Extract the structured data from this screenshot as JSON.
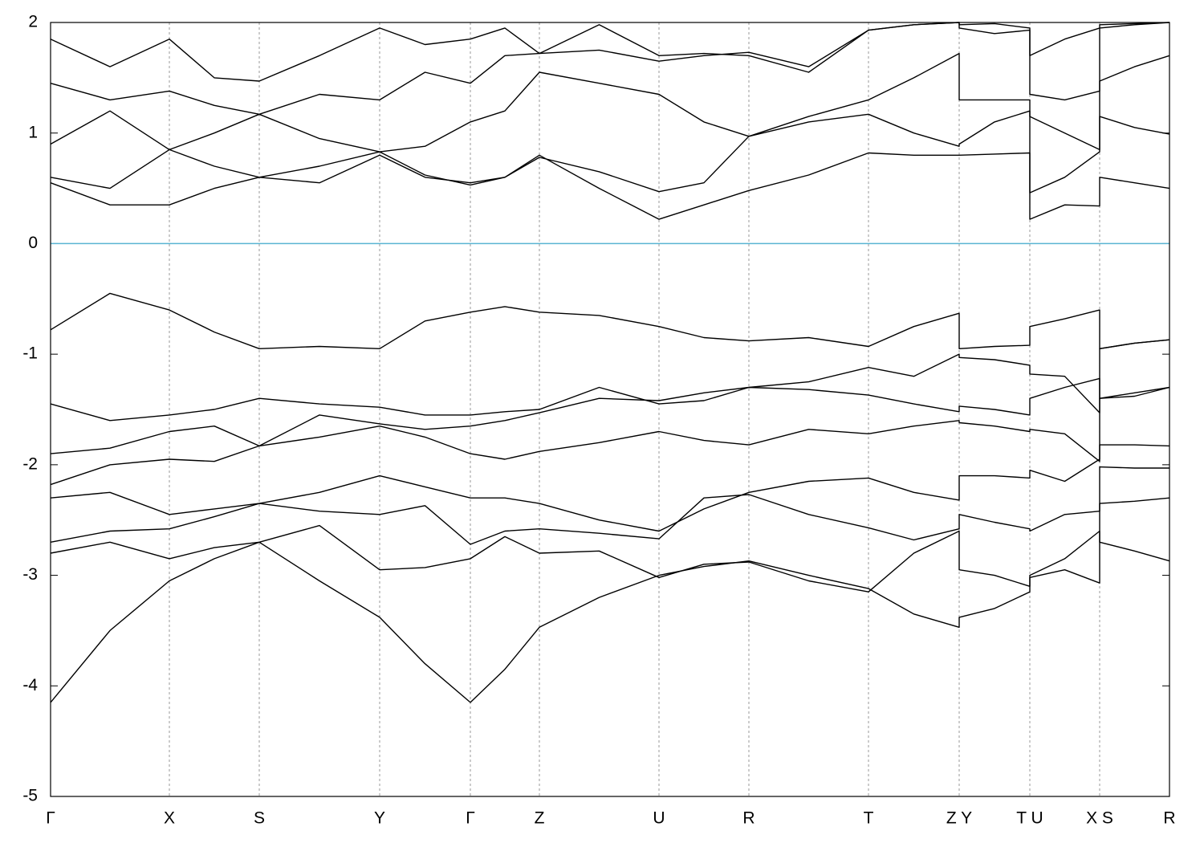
{
  "chart_data": {
    "type": "line",
    "x": [
      0,
      0.148,
      0.296,
      0.408,
      0.52,
      0.67,
      0.82,
      0.933,
      1.046,
      1.132,
      1.218,
      1.367,
      1.516,
      1.628,
      1.74,
      1.889,
      2.038,
      2.151,
      2.264,
      2.264,
      2.352,
      2.44,
      2.44,
      2.527,
      2.614,
      2.614,
      2.701,
      2.788
    ],
    "color": "#000000",
    "series": [
      {
        "values": [
          -4.15,
          -3.5,
          -3.05,
          -2.85,
          -2.7,
          -3.05,
          -3.38,
          -3.8,
          -4.15,
          -3.85,
          -3.47,
          -3.2,
          -3.0,
          -2.92,
          -2.87,
          -3.0,
          -3.12,
          -3.35,
          -3.47,
          -3.38,
          -3.3,
          -3.15,
          -3.0,
          -2.85,
          -2.6,
          -2.7,
          -2.78,
          -2.87
        ]
      },
      {
        "values": [
          -2.8,
          -2.7,
          -2.85,
          -2.75,
          -2.7,
          -2.55,
          -2.95,
          -2.93,
          -2.85,
          -2.65,
          -2.8,
          -2.78,
          -3.02,
          -2.9,
          -2.88,
          -3.05,
          -3.15,
          -2.8,
          -2.6,
          -2.95,
          -3.0,
          -3.1,
          -3.02,
          -2.95,
          -3.07,
          -2.35,
          -2.33,
          -2.3
        ]
      },
      {
        "values": [
          -2.7,
          -2.6,
          -2.58,
          -2.47,
          -2.35,
          -2.42,
          -2.45,
          -2.37,
          -2.72,
          -2.6,
          -2.58,
          -2.62,
          -2.67,
          -2.3,
          -2.27,
          -2.45,
          -2.57,
          -2.68,
          -2.58,
          -2.45,
          -2.52,
          -2.58,
          -2.6,
          -2.45,
          -2.42,
          -2.02,
          -2.03,
          -2.03
        ]
      },
      {
        "values": [
          -2.3,
          -2.25,
          -2.45,
          -2.4,
          -2.35,
          -2.25,
          -2.1,
          -2.2,
          -2.3,
          -2.3,
          -2.35,
          -2.5,
          -2.6,
          -2.4,
          -2.25,
          -2.15,
          -2.12,
          -2.25,
          -2.32,
          -2.1,
          -2.1,
          -2.12,
          -2.05,
          -2.15,
          -1.95,
          -1.82,
          -1.82,
          -1.83
        ]
      },
      {
        "values": [
          -2.18,
          -2.0,
          -1.95,
          -1.97,
          -1.83,
          -1.75,
          -1.65,
          -1.75,
          -1.9,
          -1.95,
          -1.88,
          -1.8,
          -1.7,
          -1.78,
          -1.82,
          -1.68,
          -1.72,
          -1.65,
          -1.6,
          -1.62,
          -1.65,
          -1.7,
          -1.68,
          -1.72,
          -1.97,
          -1.4,
          -1.38,
          -1.3
        ]
      },
      {
        "values": [
          -1.9,
          -1.85,
          -1.7,
          -1.65,
          -1.83,
          -1.55,
          -1.63,
          -1.68,
          -1.65,
          -1.6,
          -1.53,
          -1.4,
          -1.42,
          -1.35,
          -1.3,
          -1.32,
          -1.37,
          -1.45,
          -1.52,
          -1.47,
          -1.5,
          -1.55,
          -1.4,
          -1.3,
          -1.22,
          -1.4,
          -1.35,
          -1.3
        ]
      },
      {
        "values": [
          -1.45,
          -1.6,
          -1.55,
          -1.5,
          -1.4,
          -1.45,
          -1.48,
          -1.55,
          -1.55,
          -1.52,
          -1.5,
          -1.3,
          -1.45,
          -1.42,
          -1.3,
          -1.25,
          -1.12,
          -1.2,
          -1.0,
          -1.03,
          -1.05,
          -1.1,
          -1.18,
          -1.2,
          -1.53,
          -0.95,
          -0.9,
          -0.87
        ]
      },
      {
        "values": [
          -0.78,
          -0.45,
          -0.6,
          -0.8,
          -0.95,
          -0.93,
          -0.95,
          -0.7,
          -0.62,
          -0.57,
          -0.62,
          -0.65,
          -0.75,
          -0.85,
          -0.88,
          -0.85,
          -0.93,
          -0.75,
          -0.63,
          -0.95,
          -0.93,
          -0.92,
          -0.75,
          -0.68,
          -0.6,
          -0.95,
          -0.9,
          -0.87
        ]
      },
      {
        "values": [
          0.55,
          0.35,
          0.35,
          0.5,
          0.6,
          0.55,
          0.8,
          0.6,
          0.55,
          0.6,
          0.8,
          0.5,
          0.22,
          0.35,
          0.48,
          0.62,
          0.82,
          0.8,
          0.8,
          0.8,
          0.81,
          0.82,
          0.22,
          0.35,
          0.34,
          0.6,
          0.55,
          0.5
        ]
      },
      {
        "values": [
          0.6,
          0.5,
          0.85,
          0.7,
          0.6,
          0.7,
          0.83,
          0.62,
          0.53,
          0.6,
          0.78,
          0.65,
          0.47,
          0.55,
          0.97,
          1.1,
          1.17,
          1.0,
          0.88,
          0.9,
          1.1,
          1.2,
          0.46,
          0.6,
          0.83,
          1.15,
          1.05,
          0.99
        ]
      },
      {
        "values": [
          0.9,
          1.2,
          0.85,
          1.0,
          1.17,
          0.95,
          0.83,
          0.88,
          1.1,
          1.2,
          1.55,
          1.45,
          1.35,
          1.1,
          0.97,
          1.15,
          1.3,
          1.5,
          1.72,
          1.3,
          1.3,
          1.3,
          1.15,
          1.0,
          0.85,
          1.47,
          1.6,
          1.7
        ]
      },
      {
        "values": [
          1.45,
          1.3,
          1.38,
          1.25,
          1.17,
          1.35,
          1.3,
          1.55,
          1.45,
          1.7,
          1.72,
          1.75,
          1.65,
          1.7,
          1.73,
          1.6,
          1.93,
          1.98,
          2.0,
          1.95,
          1.9,
          1.93,
          1.35,
          1.3,
          1.38,
          1.95,
          1.98,
          2.0
        ]
      },
      {
        "values": [
          1.85,
          1.6,
          1.85,
          1.5,
          1.47,
          1.7,
          1.95,
          1.8,
          1.85,
          1.95,
          1.72,
          1.98,
          1.7,
          1.72,
          1.7,
          1.55,
          1.93,
          1.98,
          2.0,
          1.98,
          1.99,
          1.95,
          1.7,
          1.85,
          1.95,
          1.98,
          1.99,
          2.0
        ]
      }
    ],
    "xlim": [
      0,
      2.788
    ],
    "xticks": [
      {
        "value": 0,
        "label": "Γ"
      },
      {
        "value": 0.296,
        "label": "X"
      },
      {
        "value": 0.52,
        "label": "S"
      },
      {
        "value": 0.82,
        "label": "Y"
      },
      {
        "value": 1.046,
        "label": "Γ"
      },
      {
        "value": 1.218,
        "label": "Z"
      },
      {
        "value": 1.516,
        "label": "U"
      },
      {
        "value": 1.74,
        "label": "R"
      },
      {
        "value": 2.038,
        "label": "T"
      },
      {
        "value": 2.264,
        "label": "Z Y"
      },
      {
        "value": 2.44,
        "label": "T U"
      },
      {
        "value": 2.614,
        "label": "X S"
      },
      {
        "value": 2.788,
        "label": "R"
      }
    ],
    "ylim": [
      -5,
      2
    ],
    "yticks": [
      -5,
      -4,
      -3,
      -2,
      -1,
      0,
      1,
      2
    ],
    "grid": true,
    "hline": 0,
    "hline_color": "#5ab4d2"
  }
}
